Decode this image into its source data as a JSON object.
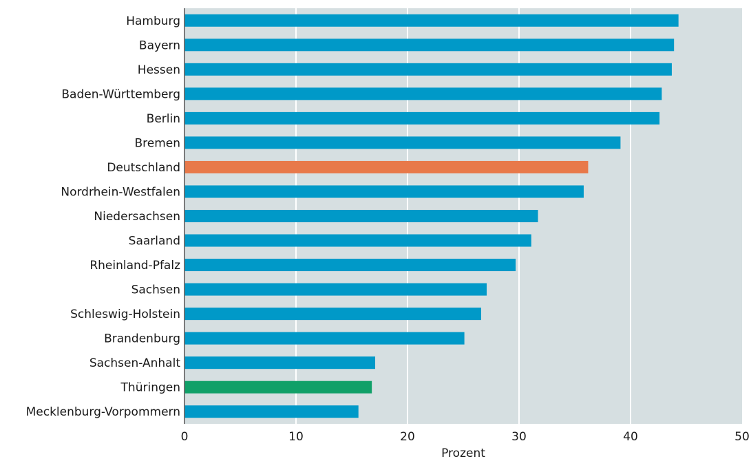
{
  "chart_data": {
    "type": "bar",
    "orientation": "horizontal",
    "categories": [
      "Hamburg",
      "Bayern",
      "Hessen",
      "Baden-Württemberg",
      "Berlin",
      "Bremen",
      "Deutschland",
      "Nordrhein-Westfalen",
      "Niedersachsen",
      "Saarland",
      "Rheinland-Pfalz",
      "Sachsen",
      "Schleswig-Holstein",
      "Brandenburg",
      "Sachsen-Anhalt",
      "Thüringen",
      "Mecklenburg-Vorpommern"
    ],
    "values": [
      44.3,
      43.9,
      43.7,
      42.8,
      42.6,
      39.1,
      36.2,
      35.8,
      31.7,
      31.1,
      29.7,
      27.1,
      26.6,
      25.1,
      17.1,
      16.8,
      15.6
    ],
    "highlight": {
      "Deutschland": "#e8794a",
      "Thüringen": "#10a068"
    },
    "bar_color": "#0099c8",
    "background_color": "#d6dfe1",
    "xlabel": "Prozent",
    "ylabel": "",
    "title": "",
    "xlim": [
      0,
      50
    ],
    "xticks": [
      0,
      10,
      20,
      30,
      40,
      50
    ],
    "grid": "vertical"
  }
}
